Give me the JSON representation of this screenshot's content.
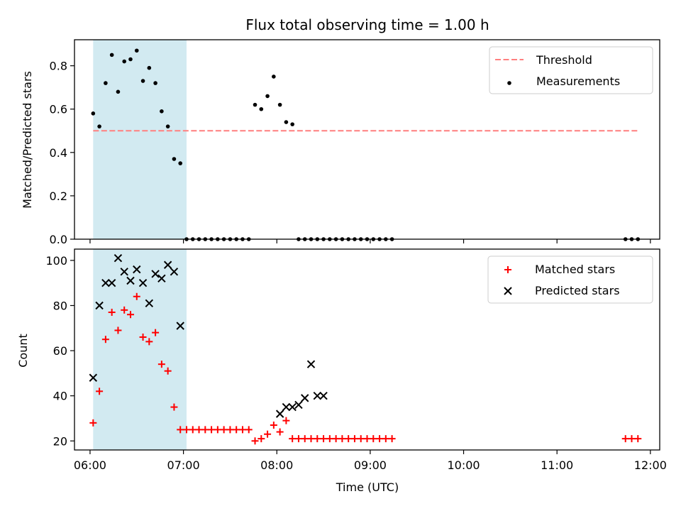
{
  "figure": {
    "title": "Flux total observing time = 1.00 h",
    "xlabel": "Time (UTC)",
    "xticks": [
      "06:00",
      "07:00",
      "08:00",
      "09:00",
      "10:00",
      "11:00",
      "12:00"
    ]
  },
  "colors": {
    "shade": "#add8e6",
    "threshold": "#ff7f7f",
    "measurements": "#000000",
    "matched": "#ff0000",
    "predicted": "#000000"
  },
  "chart_data": [
    {
      "type": "scatter",
      "ylabel": "Matched/Predicted stars",
      "xlim": [
        "05:50",
        "12:06"
      ],
      "ylim": [
        0,
        0.92
      ],
      "yticks": [
        "0.0",
        "0.2",
        "0.4",
        "0.6",
        "0.8"
      ],
      "shaded_region": [
        "06:02",
        "07:02"
      ],
      "threshold": {
        "name": "Threshold",
        "value": 0.5,
        "x": [
          "06:02",
          "11:52"
        ]
      },
      "legend_position": "top-right",
      "series": [
        {
          "name": "Measurements",
          "x": [
            "06:02",
            "06:06",
            "06:10",
            "06:14",
            "06:18",
            "06:22",
            "06:26",
            "06:30",
            "06:34",
            "06:38",
            "06:42",
            "06:46",
            "06:50",
            "06:54",
            "06:58",
            "07:02",
            "07:06",
            "07:10",
            "07:14",
            "07:18",
            "07:22",
            "07:26",
            "07:30",
            "07:34",
            "07:38",
            "07:42",
            "07:46",
            "07:50",
            "07:54",
            "07:58",
            "08:02",
            "08:06",
            "08:10",
            "08:14",
            "08:18",
            "08:22",
            "08:26",
            "08:30",
            "08:34",
            "08:38",
            "08:42",
            "08:46",
            "08:50",
            "08:54",
            "08:58",
            "09:02",
            "09:06",
            "09:10",
            "09:14",
            "11:44",
            "11:48",
            "11:52"
          ],
          "y": [
            0.58,
            0.52,
            0.72,
            0.85,
            0.68,
            0.82,
            0.83,
            0.87,
            0.73,
            0.79,
            0.72,
            0.59,
            0.52,
            0.37,
            0.35,
            0,
            0,
            0,
            0,
            0,
            0,
            0,
            0,
            0,
            0,
            0,
            0.62,
            0.6,
            0.66,
            0.75,
            0.62,
            0.54,
            0.53,
            0,
            0,
            0,
            0,
            0,
            0,
            0,
            0,
            0,
            0,
            0,
            0,
            0,
            0,
            0,
            0,
            0,
            0,
            0
          ]
        }
      ]
    },
    {
      "type": "scatter",
      "ylabel": "Count",
      "xlim": [
        "05:50",
        "12:06"
      ],
      "ylim": [
        16,
        105
      ],
      "yticks": [
        "20",
        "40",
        "60",
        "80",
        "100"
      ],
      "shaded_region": [
        "06:02",
        "07:02"
      ],
      "legend_position": "top-right",
      "series": [
        {
          "name": "Matched stars",
          "marker": "plus",
          "x": [
            "06:02",
            "06:06",
            "06:10",
            "06:14",
            "06:18",
            "06:22",
            "06:26",
            "06:30",
            "06:34",
            "06:38",
            "06:42",
            "06:46",
            "06:50",
            "06:54",
            "06:58",
            "07:02",
            "07:06",
            "07:10",
            "07:14",
            "07:18",
            "07:22",
            "07:26",
            "07:30",
            "07:34",
            "07:38",
            "07:42",
            "07:46",
            "07:50",
            "07:54",
            "07:58",
            "08:02",
            "08:06",
            "08:10",
            "08:14",
            "08:18",
            "08:22",
            "08:26",
            "08:30",
            "08:34",
            "08:38",
            "08:42",
            "08:46",
            "08:50",
            "08:54",
            "08:58",
            "09:02",
            "09:06",
            "09:10",
            "09:14",
            "11:44",
            "11:48",
            "11:52"
          ],
          "y": [
            28,
            42,
            65,
            77,
            69,
            78,
            76,
            84,
            66,
            64,
            68,
            54,
            51,
            35,
            25,
            25,
            25,
            25,
            25,
            25,
            25,
            25,
            25,
            25,
            25,
            25,
            20,
            21,
            23,
            27,
            24,
            29,
            21,
            21,
            21,
            21,
            21,
            21,
            21,
            21,
            21,
            21,
            21,
            21,
            21,
            21,
            21,
            21,
            21,
            21,
            21,
            21
          ]
        },
        {
          "name": "Predicted stars",
          "marker": "x",
          "x": [
            "06:02",
            "06:06",
            "06:10",
            "06:14",
            "06:18",
            "06:22",
            "06:26",
            "06:30",
            "06:34",
            "06:38",
            "06:42",
            "06:46",
            "06:50",
            "06:54",
            "06:58",
            "08:02",
            "08:06",
            "08:10",
            "08:14",
            "08:18",
            "08:22",
            "08:26",
            "08:30"
          ],
          "y": [
            48,
            80,
            90,
            90,
            101,
            95,
            91,
            96,
            90,
            81,
            94,
            92,
            98,
            95,
            71,
            32,
            35,
            35,
            36,
            39,
            54,
            40,
            40
          ]
        }
      ]
    }
  ]
}
